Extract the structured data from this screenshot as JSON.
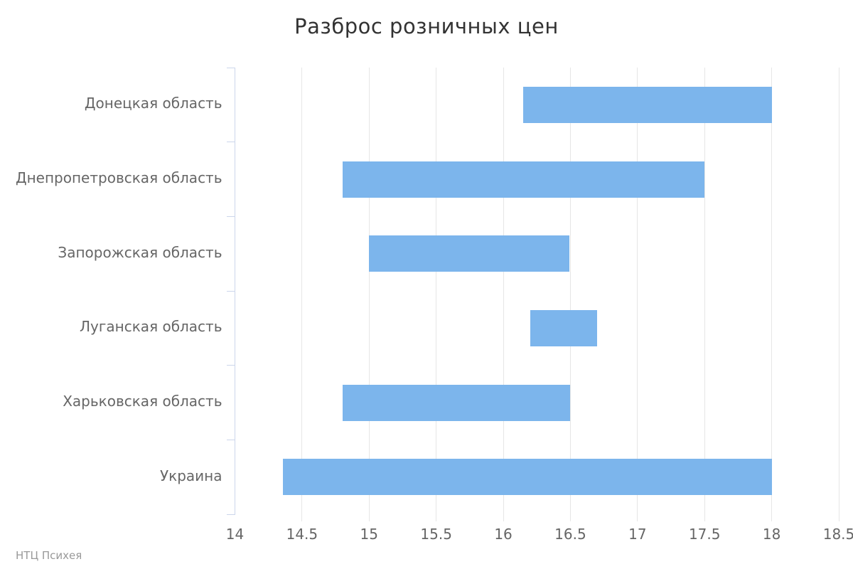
{
  "title": "Разброс розничных цен",
  "credits": "НТЦ Психея",
  "colors": {
    "bar": "#7cb5ec",
    "grid": "#e6e6e6",
    "axis_line": "#ccd6eb",
    "title_text": "#333333",
    "label_text": "#666666",
    "credits_text": "#999999"
  },
  "chart_data": {
    "type": "bar",
    "subtype": "horizontal-range",
    "title": "Разброс розничных цен",
    "categories": [
      "Донецкая область",
      "Днепропетровская область",
      "Запорожская область",
      "Луганская область",
      "Харьковская область",
      "Украина"
    ],
    "series": [
      {
        "name": "Разброс розничных цен",
        "ranges": [
          {
            "low": 16.15,
            "high": 18.0
          },
          {
            "low": 14.8,
            "high": 17.5
          },
          {
            "low": 15.0,
            "high": 16.49
          },
          {
            "low": 16.2,
            "high": 16.7
          },
          {
            "low": 14.8,
            "high": 16.5
          },
          {
            "low": 14.36,
            "high": 18.0
          }
        ]
      }
    ],
    "xlim": [
      14,
      18.5
    ],
    "x_ticks": [
      14,
      14.5,
      15,
      15.5,
      16,
      16.5,
      17,
      17.5,
      18,
      18.5
    ],
    "xlabel": "",
    "ylabel": "",
    "grid": true,
    "legend": false
  }
}
